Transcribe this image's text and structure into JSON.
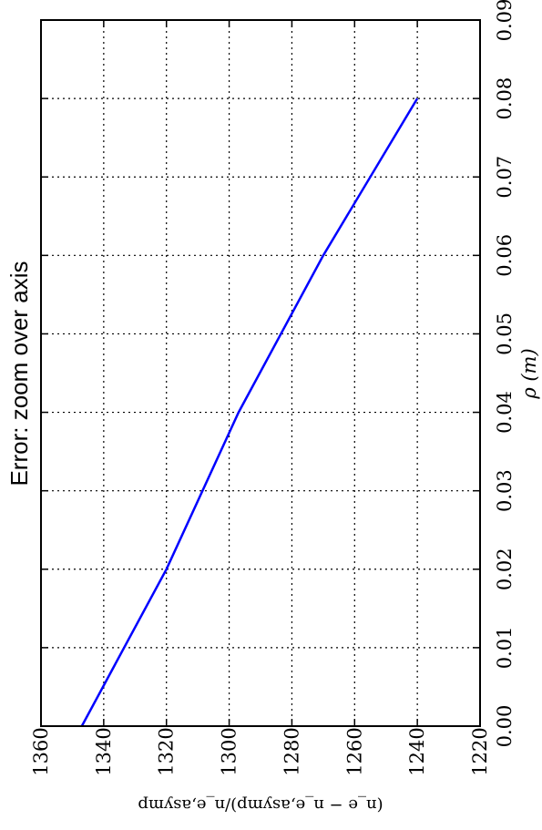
{
  "chart_data": {
    "type": "line",
    "title": "Error: zoom over axis",
    "xlabel": "ρ (m)",
    "ylabel": "(n_e − n_e,asymp)/n_e,asymp",
    "xlim": [
      1220,
      1360
    ],
    "ylim": [
      0,
      0.09
    ],
    "xticks": [
      "1220",
      "1240",
      "1260",
      "1280",
      "1300",
      "1320",
      "1340",
      "1360"
    ],
    "yticks": [
      "0.00",
      "0.01",
      "0.02",
      "0.03",
      "0.04",
      "0.05",
      "0.06",
      "0.07",
      "0.08",
      "0.09"
    ],
    "grid": true,
    "rotation": "figure rotated 90° counter-clockwise",
    "series": [
      {
        "color": "#0000ff",
        "x": [
          1347,
          1320,
          1297,
          1270,
          1240
        ],
        "y": [
          0.0,
          0.02,
          0.04,
          0.06,
          0.08
        ]
      }
    ]
  }
}
